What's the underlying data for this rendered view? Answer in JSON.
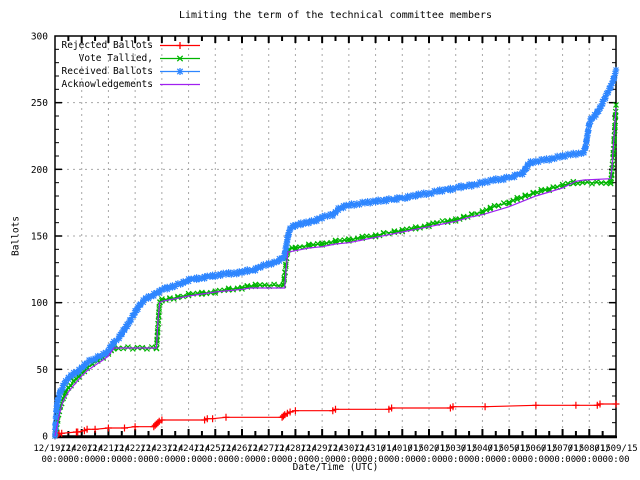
{
  "title": "Limiting the term of the technical committee members",
  "chart_data": {
    "type": "line",
    "title": "Limiting the term of the technical committee members",
    "xlabel": "Date/Time (UTC)",
    "ylabel": "Ballots",
    "ylim": [
      0,
      300
    ],
    "x_span_days": 21,
    "grid": true,
    "legend_position": "top-left-inside",
    "grid_color": "#a8a8a8",
    "y_ticks": [
      0,
      50,
      100,
      150,
      200,
      250,
      300
    ],
    "x_ticks": [
      [
        0,
        "12/19/14",
        "00:00"
      ],
      [
        1,
        "12/20/14",
        "00:00"
      ],
      [
        2,
        "12/21/14",
        "00:00"
      ],
      [
        3,
        "12/22/14",
        "00:00"
      ],
      [
        4,
        "12/23/14",
        "00:00"
      ],
      [
        5,
        "12/24/14",
        "00:00"
      ],
      [
        6,
        "12/25/14",
        "00:00"
      ],
      [
        7,
        "12/26/14",
        "00:00"
      ],
      [
        8,
        "12/27/14",
        "00:00"
      ],
      [
        9,
        "12/28/14",
        "00:00"
      ],
      [
        10,
        "12/29/14",
        "00:00"
      ],
      [
        11,
        "12/30/14",
        "00:00"
      ],
      [
        12,
        "12/31/14",
        "00:00"
      ],
      [
        13,
        "01/01/15",
        "00:00"
      ],
      [
        14,
        "01/02/15",
        "00:00"
      ],
      [
        15,
        "01/03/15",
        "00:00"
      ],
      [
        16,
        "01/04/15",
        "00:00"
      ],
      [
        17,
        "01/05/15",
        "00:00"
      ],
      [
        18,
        "01/06/15",
        "00:00"
      ],
      [
        19,
        "01/07/15",
        "00:00"
      ],
      [
        20,
        "01/08/15",
        "00:00"
      ],
      [
        21,
        "01/09/15",
        "00:00"
      ]
    ],
    "series": [
      {
        "name": "Rejected Ballots",
        "color": "#ff0000",
        "marker": "plus",
        "points": [
          [
            0,
            0
          ],
          [
            0.1,
            1
          ],
          [
            0.15,
            2
          ],
          [
            0.25,
            2
          ],
          [
            0.8,
            3
          ],
          [
            0.85,
            3
          ],
          [
            1.1,
            4
          ],
          [
            1.2,
            5
          ],
          [
            1.5,
            5
          ],
          [
            2.0,
            6
          ],
          [
            2.6,
            6
          ],
          [
            3.0,
            7
          ],
          [
            3.7,
            7
          ],
          [
            3.75,
            8
          ],
          [
            3.8,
            9
          ],
          [
            3.85,
            10
          ],
          [
            3.9,
            11
          ],
          [
            4.0,
            12
          ],
          [
            5.6,
            12
          ],
          [
            5.7,
            13
          ],
          [
            5.9,
            13
          ],
          [
            6.4,
            14
          ],
          [
            8.5,
            14
          ],
          [
            8.55,
            15
          ],
          [
            8.6,
            16
          ],
          [
            8.7,
            17
          ],
          [
            8.8,
            18
          ],
          [
            9.0,
            19
          ],
          [
            10.4,
            19
          ],
          [
            10.5,
            20
          ],
          [
            12.5,
            20
          ],
          [
            12.6,
            21
          ],
          [
            14.8,
            21
          ],
          [
            14.9,
            22
          ],
          [
            16.1,
            22
          ],
          [
            18.0,
            23
          ],
          [
            19.5,
            23
          ],
          [
            20.3,
            23
          ],
          [
            20.4,
            24
          ],
          [
            21.0,
            24
          ]
        ]
      },
      {
        "name": "Vote Tallied,",
        "color": "#00b400",
        "marker": "cross",
        "points": [
          [
            0,
            0
          ],
          [
            0.05,
            6
          ],
          [
            0.1,
            12
          ],
          [
            0.2,
            22
          ],
          [
            0.3,
            28
          ],
          [
            0.4,
            33
          ],
          [
            0.5,
            36
          ],
          [
            0.7,
            41
          ],
          [
            0.9,
            45
          ],
          [
            1.0,
            47
          ],
          [
            1.2,
            51
          ],
          [
            1.4,
            54
          ],
          [
            1.6,
            57
          ],
          [
            1.8,
            59
          ],
          [
            2.0,
            62
          ],
          [
            2.1,
            64
          ],
          [
            2.2,
            66
          ],
          [
            3.8,
            66
          ],
          [
            3.82,
            72
          ],
          [
            3.84,
            78
          ],
          [
            3.86,
            84
          ],
          [
            3.88,
            90
          ],
          [
            3.9,
            96
          ],
          [
            3.93,
            100
          ],
          [
            4.0,
            102
          ],
          [
            4.3,
            103
          ],
          [
            4.6,
            104
          ],
          [
            5.0,
            106
          ],
          [
            5.5,
            107
          ],
          [
            6.0,
            108
          ],
          [
            6.5,
            110
          ],
          [
            7.0,
            111
          ],
          [
            7.2,
            112
          ],
          [
            7.5,
            113
          ],
          [
            8.55,
            113
          ],
          [
            8.58,
            118
          ],
          [
            8.61,
            123
          ],
          [
            8.64,
            128
          ],
          [
            8.67,
            133
          ],
          [
            8.7,
            138
          ],
          [
            8.75,
            140
          ],
          [
            9.0,
            141
          ],
          [
            9.5,
            143
          ],
          [
            10.0,
            144
          ],
          [
            10.5,
            146
          ],
          [
            11.0,
            147
          ],
          [
            11.5,
            149
          ],
          [
            12.0,
            150
          ],
          [
            12.3,
            152
          ],
          [
            12.7,
            153
          ],
          [
            13.0,
            154
          ],
          [
            13.5,
            156
          ],
          [
            14.0,
            158
          ],
          [
            14.3,
            160
          ],
          [
            14.7,
            161
          ],
          [
            15.0,
            162
          ],
          [
            15.3,
            164
          ],
          [
            15.6,
            166
          ],
          [
            16.0,
            168
          ],
          [
            16.3,
            171
          ],
          [
            16.6,
            173
          ],
          [
            17.0,
            175
          ],
          [
            17.3,
            178
          ],
          [
            17.6,
            180
          ],
          [
            17.9,
            182
          ],
          [
            18.2,
            184
          ],
          [
            18.5,
            185
          ],
          [
            18.8,
            187
          ],
          [
            19.0,
            188
          ],
          [
            19.2,
            189
          ],
          [
            19.4,
            190
          ],
          [
            20.8,
            190
          ],
          [
            20.84,
            196
          ],
          [
            20.87,
            204
          ],
          [
            20.9,
            212
          ],
          [
            20.93,
            222
          ],
          [
            20.96,
            232
          ],
          [
            20.98,
            240
          ],
          [
            21.0,
            248
          ]
        ]
      },
      {
        "name": "Received Ballots",
        "color": "#2e86ff",
        "marker": "star",
        "points": [
          [
            0,
            0
          ],
          [
            0.02,
            8
          ],
          [
            0.04,
            15
          ],
          [
            0.06,
            20
          ],
          [
            0.08,
            24
          ],
          [
            0.1,
            27
          ],
          [
            0.15,
            30
          ],
          [
            0.2,
            33
          ],
          [
            0.3,
            37
          ],
          [
            0.4,
            41
          ],
          [
            0.5,
            43
          ],
          [
            0.6,
            45
          ],
          [
            0.7,
            47
          ],
          [
            0.8,
            48
          ],
          [
            0.9,
            49
          ],
          [
            1.0,
            51
          ],
          [
            1.1,
            53
          ],
          [
            1.2,
            55
          ],
          [
            1.35,
            57
          ],
          [
            1.5,
            58
          ],
          [
            1.7,
            60
          ],
          [
            1.9,
            62
          ],
          [
            2.0,
            64
          ],
          [
            2.1,
            67
          ],
          [
            2.2,
            70
          ],
          [
            2.3,
            72
          ],
          [
            2.4,
            74
          ],
          [
            2.5,
            77
          ],
          [
            2.6,
            80
          ],
          [
            2.7,
            83
          ],
          [
            2.8,
            86
          ],
          [
            2.9,
            90
          ],
          [
            3.0,
            93
          ],
          [
            3.1,
            96
          ],
          [
            3.2,
            99
          ],
          [
            3.3,
            101
          ],
          [
            3.4,
            103
          ],
          [
            3.5,
            104
          ],
          [
            3.6,
            105
          ],
          [
            3.7,
            106
          ],
          [
            3.8,
            107
          ],
          [
            3.9,
            108
          ],
          [
            4.0,
            110
          ],
          [
            4.2,
            111
          ],
          [
            4.4,
            112
          ],
          [
            4.6,
            114
          ],
          [
            4.8,
            115
          ],
          [
            5.0,
            117
          ],
          [
            5.3,
            118
          ],
          [
            5.6,
            119
          ],
          [
            5.9,
            120
          ],
          [
            6.2,
            121
          ],
          [
            6.5,
            122
          ],
          [
            6.8,
            122
          ],
          [
            7.0,
            123
          ],
          [
            7.2,
            124
          ],
          [
            7.5,
            125
          ],
          [
            7.7,
            127
          ],
          [
            8.0,
            129
          ],
          [
            8.2,
            130
          ],
          [
            8.4,
            132
          ],
          [
            8.5,
            133
          ],
          [
            8.6,
            136
          ],
          [
            8.65,
            142
          ],
          [
            8.7,
            148
          ],
          [
            8.75,
            152
          ],
          [
            8.8,
            155
          ],
          [
            8.9,
            157
          ],
          [
            9.0,
            158
          ],
          [
            9.2,
            159
          ],
          [
            9.4,
            160
          ],
          [
            9.6,
            161
          ],
          [
            9.8,
            162
          ],
          [
            10.0,
            164
          ],
          [
            10.2,
            165
          ],
          [
            10.4,
            166
          ],
          [
            10.5,
            168
          ],
          [
            10.6,
            170
          ],
          [
            10.8,
            172
          ],
          [
            11.0,
            173
          ],
          [
            11.3,
            174
          ],
          [
            11.6,
            175
          ],
          [
            12.0,
            176
          ],
          [
            12.4,
            177
          ],
          [
            12.8,
            178
          ],
          [
            13.2,
            179
          ],
          [
            13.6,
            181
          ],
          [
            14.0,
            182
          ],
          [
            14.4,
            184
          ],
          [
            14.8,
            185
          ],
          [
            15.2,
            187
          ],
          [
            15.6,
            188
          ],
          [
            16.0,
            190
          ],
          [
            16.4,
            192
          ],
          [
            16.8,
            193
          ],
          [
            17.2,
            195
          ],
          [
            17.5,
            197
          ],
          [
            17.6,
            200
          ],
          [
            17.7,
            203
          ],
          [
            17.8,
            205
          ],
          [
            18.0,
            206
          ],
          [
            18.3,
            207
          ],
          [
            18.6,
            208
          ],
          [
            19.0,
            210
          ],
          [
            19.3,
            211
          ],
          [
            19.6,
            212
          ],
          [
            19.8,
            213
          ],
          [
            19.85,
            216
          ],
          [
            19.9,
            222
          ],
          [
            19.95,
            228
          ],
          [
            20.0,
            234
          ],
          [
            20.05,
            237
          ],
          [
            20.1,
            238
          ],
          [
            20.2,
            240
          ],
          [
            20.3,
            243
          ],
          [
            20.4,
            246
          ],
          [
            20.5,
            250
          ],
          [
            20.6,
            254
          ],
          [
            20.7,
            258
          ],
          [
            20.8,
            262
          ],
          [
            20.9,
            267
          ],
          [
            21.0,
            274
          ]
        ]
      },
      {
        "name": "Acknowledgements",
        "color": "#a020f0",
        "marker": "none",
        "points": [
          [
            0,
            0
          ],
          [
            0.05,
            5
          ],
          [
            0.1,
            10
          ],
          [
            0.2,
            19
          ],
          [
            0.3,
            26
          ],
          [
            0.5,
            33
          ],
          [
            0.7,
            38
          ],
          [
            1.0,
            45
          ],
          [
            1.2,
            49
          ],
          [
            1.5,
            53
          ],
          [
            1.8,
            57
          ],
          [
            2.0,
            60
          ],
          [
            2.1,
            63
          ],
          [
            2.2,
            66
          ],
          [
            3.8,
            66
          ],
          [
            3.85,
            85
          ],
          [
            3.92,
            100
          ],
          [
            4.0,
            101
          ],
          [
            4.5,
            103
          ],
          [
            5.0,
            105
          ],
          [
            6.0,
            108
          ],
          [
            7.0,
            110
          ],
          [
            7.3,
            111
          ],
          [
            8.6,
            111
          ],
          [
            8.65,
            125
          ],
          [
            8.72,
            138
          ],
          [
            9.0,
            139
          ],
          [
            9.5,
            141
          ],
          [
            10.0,
            142
          ],
          [
            10.5,
            144
          ],
          [
            11.0,
            145
          ],
          [
            11.5,
            147
          ],
          [
            12.0,
            149
          ],
          [
            12.5,
            151
          ],
          [
            13.0,
            153
          ],
          [
            13.5,
            155
          ],
          [
            14.0,
            157
          ],
          [
            14.5,
            159
          ],
          [
            15.0,
            161
          ],
          [
            15.5,
            164
          ],
          [
            16.0,
            166
          ],
          [
            16.5,
            169
          ],
          [
            17.0,
            172
          ],
          [
            17.5,
            176
          ],
          [
            18.0,
            180
          ],
          [
            18.5,
            183
          ],
          [
            19.0,
            186
          ],
          [
            19.3,
            189
          ],
          [
            19.5,
            191
          ],
          [
            19.8,
            192
          ],
          [
            20.8,
            193
          ],
          [
            20.85,
            202
          ],
          [
            20.9,
            216
          ],
          [
            20.95,
            233
          ],
          [
            21.0,
            246
          ]
        ]
      }
    ]
  }
}
